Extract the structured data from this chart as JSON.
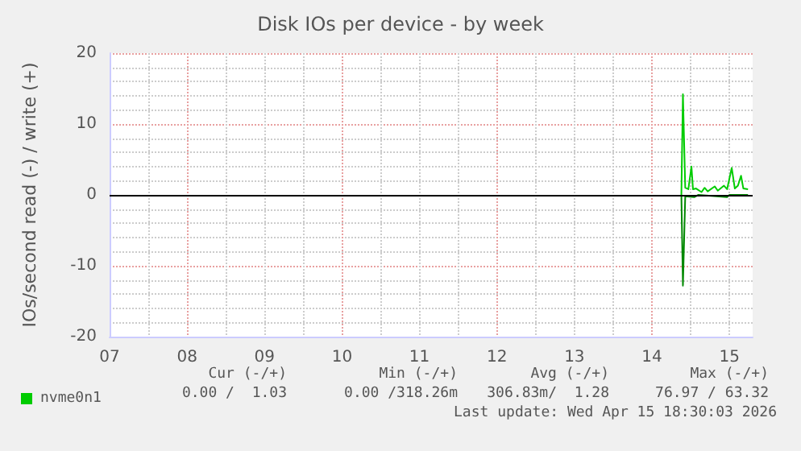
{
  "chart_data": {
    "type": "line",
    "title": "Disk IOs per device - by week",
    "ylabel": "IOs/second read (-) / write (+)",
    "xlim": [
      7,
      15.3
    ],
    "xticks": [
      {
        "value": 7,
        "label": "07"
      },
      {
        "value": 8,
        "label": "08"
      },
      {
        "value": 9,
        "label": "09"
      },
      {
        "value": 10,
        "label": "10"
      },
      {
        "value": 11,
        "label": "11"
      },
      {
        "value": 12,
        "label": "12"
      },
      {
        "value": 13,
        "label": "13"
      },
      {
        "value": 14,
        "label": "14"
      },
      {
        "value": 15,
        "label": "15"
      }
    ],
    "ylim": [
      -20,
      20
    ],
    "yticks": [
      -20,
      -10,
      0,
      10,
      20
    ],
    "grid": true,
    "legend": "bottom left",
    "marker": "none",
    "line_style": "solid",
    "series": [
      {
        "name": "nvme0n1",
        "color": "#00cc00",
        "x": [
          14.38,
          14.4,
          14.43,
          14.47,
          14.51,
          14.53,
          14.57,
          14.64,
          14.68,
          14.72,
          14.81,
          14.85,
          14.93,
          14.97,
          15.03,
          15.07,
          15.11,
          15.15,
          15.18,
          15.24
        ],
        "values": [
          0,
          14.2,
          1.0,
          0.8,
          4.0,
          0.8,
          0.9,
          0.4,
          1.0,
          0.5,
          1.2,
          0.6,
          1.3,
          0.8,
          3.8,
          0.9,
          1.3,
          2.7,
          0.9,
          0.8
        ]
      },
      {
        "color": "#008800",
        "x": [
          14.38,
          14.4,
          14.43,
          14.55,
          14.6,
          14.97,
          15.0,
          15.24
        ],
        "values": [
          0,
          -12.8,
          -0.2,
          -0.3,
          0,
          -0.3,
          0,
          0
        ]
      }
    ],
    "ref_lines": [
      {
        "axis": "y",
        "value": 0,
        "color": "#000000"
      }
    ],
    "annotations": [
      "Cur (-/+)",
      "Min (-/+)",
      "Avg (-/+)",
      "Max (-/+)",
      "0.00 /  1.03",
      "0.00 /318.26m",
      "306.83m/  1.28",
      "76.97 / 63.32",
      "Last update: Wed Apr 15 18:30:03 2026"
    ]
  }
}
